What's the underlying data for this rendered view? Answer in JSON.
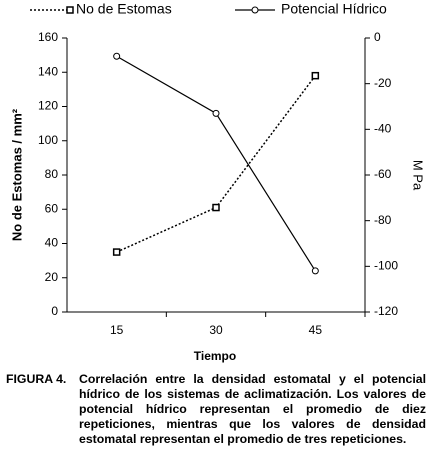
{
  "chart_data": {
    "type": "line",
    "categories": [
      "15",
      "30",
      "45"
    ],
    "x_label": "Tiempo",
    "y_label": "No de Estomas / mm²",
    "y2_label": "M Pa",
    "ylim": [
      0,
      160
    ],
    "yticks": [
      0,
      20,
      40,
      60,
      80,
      100,
      120,
      140,
      160
    ],
    "y2lim": [
      -120,
      0
    ],
    "y2ticks": [
      -120,
      -100,
      -80,
      -60,
      -40,
      -20,
      0
    ],
    "series": [
      {
        "name": "No de Estomas",
        "color": "#000000",
        "dash": true,
        "marker": "square",
        "values": [
          35,
          61,
          138
        ]
      },
      {
        "name": "Potencial Hídrico",
        "color": "#000000",
        "dash": false,
        "marker": "circle",
        "axis": "y2",
        "values": [
          -8,
          -33,
          -102
        ]
      }
    ]
  },
  "caption": {
    "label": "FIGURA 4.",
    "text": "Correlación entre la densidad estomatal y el potencial hídrico de los sistemas de aclimatización. Los valores de potencial hídrico representan el promedio de diez repeticiones, mientras que los valores de densidad estomatal representan el promedio de tres repeticiones."
  }
}
